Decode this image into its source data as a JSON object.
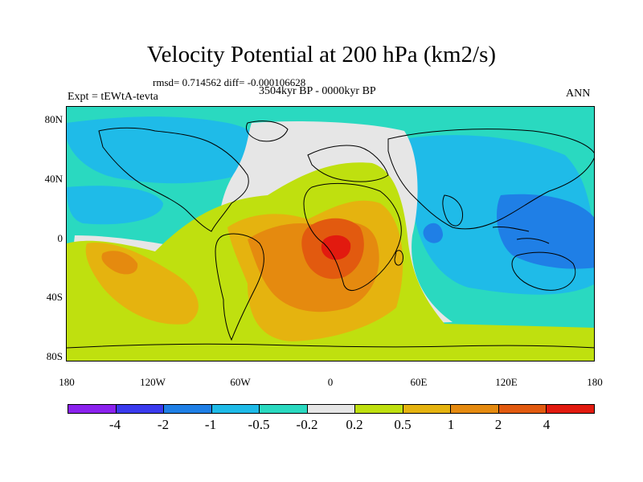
{
  "title": "Velocity Potential at 200 hPa (km2/s)",
  "stats": "rmsd= 0.714562  diff= -0.000106628",
  "experiment": "Expt = tEWtA-tevta",
  "period": "3504kyr BP - 0000kyr BP",
  "season": "ANN",
  "y_ticks": [
    "80N",
    "40N",
    "0",
    "40S",
    "80S"
  ],
  "x_ticks": [
    "180",
    "120W",
    "60W",
    "0",
    "60E",
    "120E",
    "180"
  ],
  "colorbar": {
    "colors": [
      "#8b22ee",
      "#3a3aee",
      "#1f7fe6",
      "#1fbbe8",
      "#2ad9c0",
      "#e6e6e6",
      "#bfe00f",
      "#e5b30f",
      "#e58a0f",
      "#e25a0f",
      "#e21a0f"
    ],
    "labels": [
      "-4",
      "-2",
      "-1",
      "-0.5",
      "-0.2",
      "0.2",
      "0.5",
      "1",
      "2",
      "4"
    ]
  },
  "map_colors": {
    "ocean_base": "#2ad9c0",
    "light_blue": "#1fbbe8",
    "mid_blue": "#1f7fe6",
    "neutral": "#e6e6e6",
    "yellow_green": "#bfe00f",
    "yellow_orange": "#e5b30f",
    "orange": "#e58a0f",
    "dark_orange": "#e25a0f",
    "red": "#e21a0f"
  }
}
